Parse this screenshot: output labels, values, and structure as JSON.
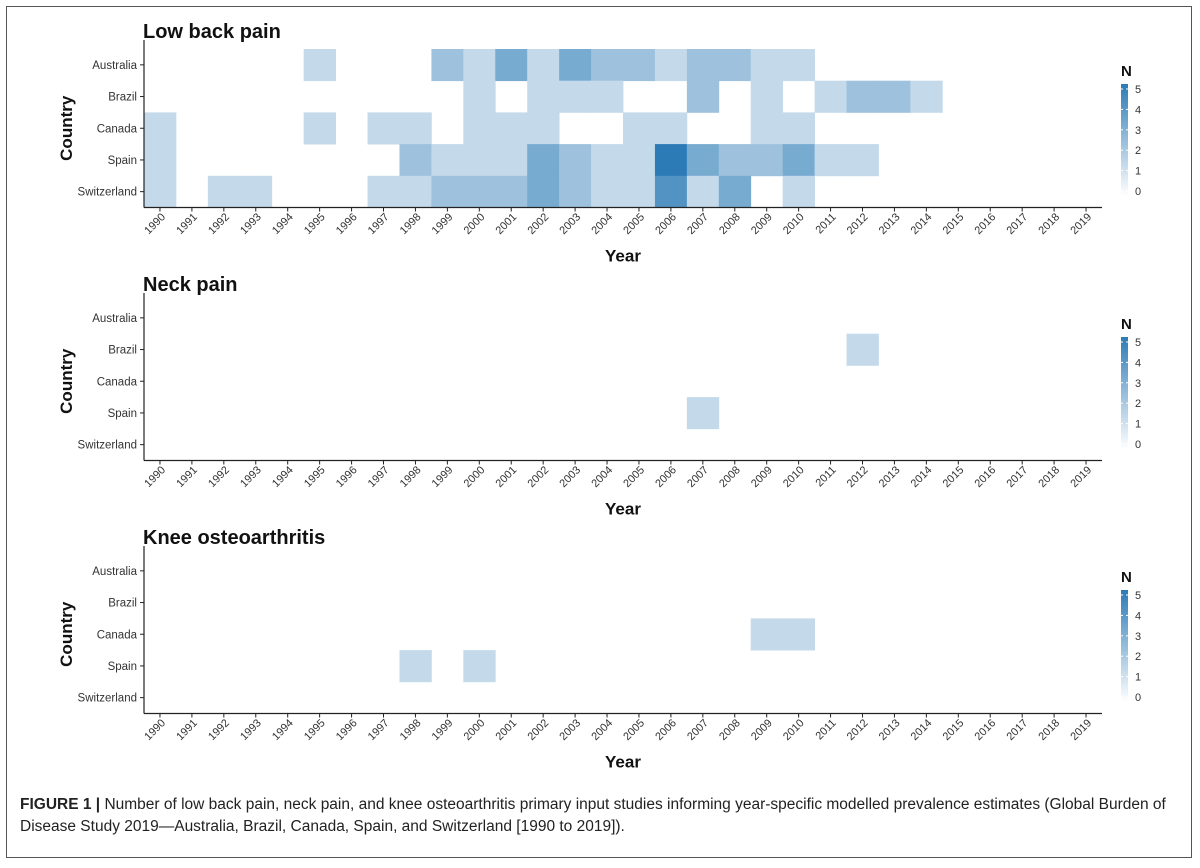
{
  "figure": {
    "caption_label": "FIGURE 1 |",
    "caption_text": " Number of low back pain, neck pain, and knee osteoarthritis primary input studies informing year-specific modelled prevalence estimates (Global Burden of Disease Study 2019—Australia, Brazil, Canada, Spain, and Switzerland [1990 to 2019])."
  },
  "colors": {
    "scale_low": "#ffffff",
    "scale_high": "#2c7bb6",
    "axis": "#222222",
    "frame": "#555555"
  },
  "chart_data": [
    {
      "type": "heatmap",
      "title": "Low back pain",
      "xlabel": "Year",
      "ylabel": "Country",
      "legend_title": "N",
      "legend_ticks": [
        0,
        1,
        2,
        3,
        4,
        5
      ],
      "value_range": [
        0,
        5
      ],
      "x": [
        "1990",
        "1991",
        "1992",
        "1993",
        "1994",
        "1995",
        "1996",
        "1997",
        "1998",
        "1999",
        "2000",
        "2001",
        "2002",
        "2003",
        "2004",
        "2005",
        "2006",
        "2007",
        "2008",
        "2009",
        "2010",
        "2011",
        "2012",
        "2013",
        "2014",
        "2015",
        "2016",
        "2017",
        "2018",
        "2019"
      ],
      "y": [
        "Australia",
        "Brazil",
        "Canada",
        "Spain",
        "Switzerland"
      ],
      "values": [
        [
          0,
          0,
          0,
          0,
          0,
          1,
          0,
          0,
          0,
          2,
          1,
          3,
          1,
          3,
          2,
          2,
          1,
          2,
          2,
          1,
          1,
          0,
          0,
          0,
          0,
          0,
          0,
          0,
          0,
          0
        ],
        [
          0,
          0,
          0,
          0,
          0,
          0,
          0,
          0,
          0,
          0,
          1,
          0,
          1,
          1,
          1,
          0,
          0,
          2,
          0,
          1,
          0,
          1,
          2,
          2,
          1,
          0,
          0,
          0,
          0,
          0
        ],
        [
          1,
          0,
          0,
          0,
          0,
          1,
          0,
          1,
          1,
          0,
          1,
          1,
          1,
          0,
          0,
          1,
          1,
          0,
          0,
          1,
          1,
          0,
          0,
          0,
          0,
          0,
          0,
          0,
          0,
          0
        ],
        [
          1,
          0,
          0,
          0,
          0,
          0,
          0,
          0,
          2,
          1,
          1,
          1,
          3,
          2,
          1,
          1,
          5,
          3,
          2,
          2,
          3,
          1,
          1,
          0,
          0,
          0,
          0,
          0,
          0,
          0
        ],
        [
          1,
          0,
          1,
          1,
          0,
          0,
          0,
          1,
          1,
          2,
          2,
          2,
          3,
          2,
          1,
          1,
          4,
          1,
          3,
          0,
          1,
          0,
          0,
          0,
          0,
          0,
          0,
          0,
          0,
          0
        ]
      ]
    },
    {
      "type": "heatmap",
      "title": "Neck pain",
      "xlabel": "Year",
      "ylabel": "Country",
      "legend_title": "N",
      "legend_ticks": [
        0,
        1,
        2,
        3,
        4,
        5
      ],
      "value_range": [
        0,
        5
      ],
      "x": [
        "1990",
        "1991",
        "1992",
        "1993",
        "1994",
        "1995",
        "1996",
        "1997",
        "1998",
        "1999",
        "2000",
        "2001",
        "2002",
        "2003",
        "2004",
        "2005",
        "2006",
        "2007",
        "2008",
        "2009",
        "2010",
        "2011",
        "2012",
        "2013",
        "2014",
        "2015",
        "2016",
        "2017",
        "2018",
        "2019"
      ],
      "y": [
        "Australia",
        "Brazil",
        "Canada",
        "Spain",
        "Switzerland"
      ],
      "values": [
        [
          0,
          0,
          0,
          0,
          0,
          0,
          0,
          0,
          0,
          0,
          0,
          0,
          0,
          0,
          0,
          0,
          0,
          0,
          0,
          0,
          0,
          0,
          0,
          0,
          0,
          0,
          0,
          0,
          0,
          0
        ],
        [
          0,
          0,
          0,
          0,
          0,
          0,
          0,
          0,
          0,
          0,
          0,
          0,
          0,
          0,
          0,
          0,
          0,
          0,
          0,
          0,
          0,
          0,
          1,
          0,
          0,
          0,
          0,
          0,
          0,
          0
        ],
        [
          0,
          0,
          0,
          0,
          0,
          0,
          0,
          0,
          0,
          0,
          0,
          0,
          0,
          0,
          0,
          0,
          0,
          0,
          0,
          0,
          0,
          0,
          0,
          0,
          0,
          0,
          0,
          0,
          0,
          0
        ],
        [
          0,
          0,
          0,
          0,
          0,
          0,
          0,
          0,
          0,
          0,
          0,
          0,
          0,
          0,
          0,
          0,
          0,
          1,
          0,
          0,
          0,
          0,
          0,
          0,
          0,
          0,
          0,
          0,
          0,
          0
        ],
        [
          0,
          0,
          0,
          0,
          0,
          0,
          0,
          0,
          0,
          0,
          0,
          0,
          0,
          0,
          0,
          0,
          0,
          0,
          0,
          0,
          0,
          0,
          0,
          0,
          0,
          0,
          0,
          0,
          0,
          0
        ]
      ]
    },
    {
      "type": "heatmap",
      "title": "Knee osteoarthritis",
      "xlabel": "Year",
      "ylabel": "Country",
      "legend_title": "N",
      "legend_ticks": [
        0,
        1,
        2,
        3,
        4,
        5
      ],
      "value_range": [
        0,
        5
      ],
      "x": [
        "1990",
        "1991",
        "1992",
        "1993",
        "1994",
        "1995",
        "1996",
        "1997",
        "1998",
        "1999",
        "2000",
        "2001",
        "2002",
        "2003",
        "2004",
        "2005",
        "2006",
        "2007",
        "2008",
        "2009",
        "2010",
        "2011",
        "2012",
        "2013",
        "2014",
        "2015",
        "2016",
        "2017",
        "2018",
        "2019"
      ],
      "y": [
        "Australia",
        "Brazil",
        "Canada",
        "Spain",
        "Switzerland"
      ],
      "values": [
        [
          0,
          0,
          0,
          0,
          0,
          0,
          0,
          0,
          0,
          0,
          0,
          0,
          0,
          0,
          0,
          0,
          0,
          0,
          0,
          0,
          0,
          0,
          0,
          0,
          0,
          0,
          0,
          0,
          0,
          0
        ],
        [
          0,
          0,
          0,
          0,
          0,
          0,
          0,
          0,
          0,
          0,
          0,
          0,
          0,
          0,
          0,
          0,
          0,
          0,
          0,
          0,
          0,
          0,
          0,
          0,
          0,
          0,
          0,
          0,
          0,
          0
        ],
        [
          0,
          0,
          0,
          0,
          0,
          0,
          0,
          0,
          0,
          0,
          0,
          0,
          0,
          0,
          0,
          0,
          0,
          0,
          0,
          1,
          1,
          0,
          0,
          0,
          0,
          0,
          0,
          0,
          0,
          0
        ],
        [
          0,
          0,
          0,
          0,
          0,
          0,
          0,
          0,
          1,
          0,
          1,
          0,
          0,
          0,
          0,
          0,
          0,
          0,
          0,
          0,
          0,
          0,
          0,
          0,
          0,
          0,
          0,
          0,
          0,
          0
        ],
        [
          0,
          0,
          0,
          0,
          0,
          0,
          0,
          0,
          0,
          0,
          0,
          0,
          0,
          0,
          0,
          0,
          0,
          0,
          0,
          0,
          0,
          0,
          0,
          0,
          0,
          0,
          0,
          0,
          0,
          0
        ]
      ]
    }
  ]
}
